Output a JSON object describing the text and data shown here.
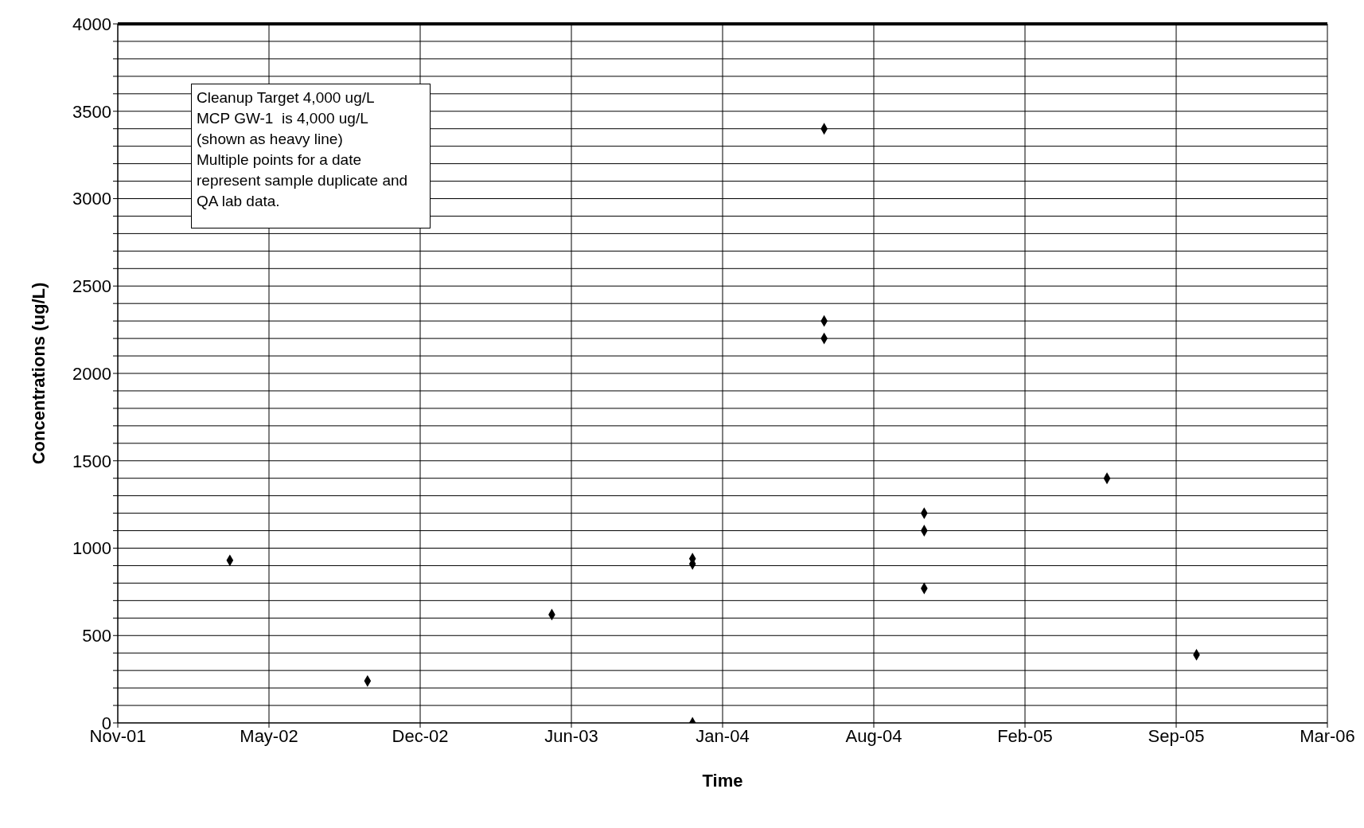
{
  "chart_data": {
    "type": "scatter",
    "xlabel": "Time",
    "ylabel": "Concentrations (ug/L)",
    "marker": "diamond",
    "grid": true,
    "legend": false,
    "annotations": [
      "Cleanup Target 4,000 ug/L",
      "MCP GW-1  is 4,000 ug/L",
      "(shown as heavy line)",
      "Multiple points for a date",
      "represent sample duplicate and",
      "QA lab data."
    ],
    "ref_lines": [
      {
        "axis": "y",
        "value": 4000,
        "color": "#000000"
      }
    ],
    "xlim": [
      "2001-11-01",
      "2006-03-28"
    ],
    "xticks": [
      {
        "value": "2001-11-01",
        "label": "Nov-01"
      },
      {
        "value": "2002-05-21",
        "label": "May-02"
      },
      {
        "value": "2002-12-08",
        "label": "Dec-02"
      },
      {
        "value": "2003-06-27",
        "label": "Jun-03"
      },
      {
        "value": "2004-01-14",
        "label": "Jan-04"
      },
      {
        "value": "2004-08-02",
        "label": "Aug-04"
      },
      {
        "value": "2005-02-19",
        "label": "Feb-05"
      },
      {
        "value": "2005-09-08",
        "label": "Sep-05"
      },
      {
        "value": "2006-03-28",
        "label": "Mar-06"
      }
    ],
    "ylim": [
      0,
      4000
    ],
    "yticks": [
      0,
      {
        "value": 100,
        "label": null
      },
      {
        "value": 200,
        "label": null
      },
      {
        "value": 300,
        "label": null
      },
      {
        "value": 400,
        "label": null
      },
      500,
      {
        "value": 600,
        "label": null
      },
      {
        "value": 700,
        "label": null
      },
      {
        "value": 800,
        "label": null
      },
      {
        "value": 900,
        "label": null
      },
      1000,
      {
        "value": 1100,
        "label": null
      },
      {
        "value": 1200,
        "label": null
      },
      {
        "value": 1300,
        "label": null
      },
      {
        "value": 1400,
        "label": null
      },
      1500,
      {
        "value": 1600,
        "label": null
      },
      {
        "value": 1700,
        "label": null
      },
      {
        "value": 1800,
        "label": null
      },
      {
        "value": 1900,
        "label": null
      },
      2000,
      {
        "value": 2100,
        "label": null
      },
      {
        "value": 2200,
        "label": null
      },
      {
        "value": 2300,
        "label": null
      },
      {
        "value": 2400,
        "label": null
      },
      2500,
      {
        "value": 2600,
        "label": null
      },
      {
        "value": 2700,
        "label": null
      },
      {
        "value": 2800,
        "label": null
      },
      {
        "value": 2900,
        "label": null
      },
      3000,
      {
        "value": 3100,
        "label": null
      },
      {
        "value": 3200,
        "label": null
      },
      {
        "value": 3300,
        "label": null
      },
      {
        "value": 3400,
        "label": null
      },
      3500,
      {
        "value": 3600,
        "label": null
      },
      {
        "value": 3700,
        "label": null
      },
      {
        "value": 3800,
        "label": null
      },
      {
        "value": 3900,
        "label": null
      },
      4000
    ],
    "series": [
      {
        "color": "#000000",
        "x": [
          "2002-03-30",
          "2002-09-29",
          "2003-06-01",
          "2003-12-05",
          "2003-12-05",
          "2003-12-05",
          "2004-05-28",
          "2004-05-28",
          "2004-05-28",
          "2004-10-08",
          "2004-10-08",
          "2004-10-08",
          "2005-06-08",
          "2005-10-05"
        ],
        "values": [
          930,
          240,
          620,
          940,
          910,
          0,
          3400,
          2300,
          2200,
          1200,
          1100,
          770,
          1400,
          390
        ]
      }
    ]
  }
}
